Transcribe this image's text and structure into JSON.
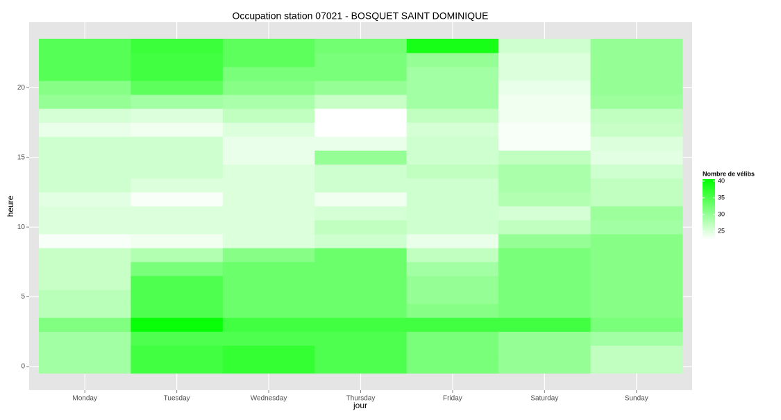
{
  "chart_data": {
    "type": "heatmap",
    "title": "Occupation station 07021 - BOSQUET SAINT DOMINIQUE",
    "x_label": "jour",
    "y_label": "heure",
    "categories": [
      "Monday",
      "Tuesday",
      "Wednesday",
      "Thursday",
      "Friday",
      "Saturday",
      "Sunday"
    ],
    "y": [
      0,
      1,
      2,
      3,
      4,
      5,
      6,
      7,
      8,
      9,
      10,
      11,
      12,
      13,
      14,
      15,
      16,
      17,
      18,
      19,
      20,
      21,
      22,
      23
    ],
    "values": [
      [
        29,
        29,
        29,
        31.5,
        27.5,
        27.5,
        26.5,
        26.5,
        26.5,
        23,
        25,
        25,
        24.5,
        26,
        26,
        26,
        26,
        24,
        25.5,
        30,
        31,
        34.5,
        34.5,
        34.5
      ],
      [
        36,
        36,
        35,
        40,
        35,
        35,
        35,
        32,
        28,
        23.5,
        25,
        25,
        23,
        25,
        26,
        26,
        26,
        23.5,
        25,
        29,
        34,
        36,
        36,
        36.5
      ],
      [
        37,
        37,
        35,
        36,
        33,
        33,
        33,
        33,
        31,
        25,
        25,
        25,
        25,
        25,
        25,
        24,
        24,
        25,
        27,
        28.5,
        31,
        32,
        34,
        34
      ],
      [
        35,
        35,
        35,
        36,
        33,
        33,
        33,
        33,
        33,
        26,
        27,
        25.5,
        23.5,
        26,
        26,
        30,
        24,
        22.5,
        22.5,
        26.5,
        30,
        32,
        32,
        32.5
      ],
      [
        32,
        32,
        32,
        36,
        31,
        30,
        30,
        29,
        27,
        24,
        26,
        26,
        26,
        26,
        27,
        26,
        26,
        25.5,
        27,
        29,
        29,
        29,
        30,
        39
      ],
      [
        30,
        30,
        30,
        36,
        32,
        32,
        32,
        32,
        32,
        30,
        27,
        25.5,
        28,
        28.5,
        28.5,
        27,
        23,
        23,
        23.5,
        23.5,
        24,
        25,
        25,
        26
      ],
      [
        27,
        27,
        29,
        32,
        31,
        31,
        31,
        31,
        31,
        31,
        29,
        29.5,
        27,
        27,
        26,
        24.5,
        25,
        26.5,
        27,
        29.5,
        30,
        30,
        30,
        30
      ]
    ],
    "ylim": [
      -1.7,
      24.7
    ],
    "yticks": [
      0,
      5,
      10,
      15,
      20
    ],
    "grid": true,
    "legend_title": "Nombre de vélibs",
    "legend_position": "right",
    "colorlim": [
      22.5,
      40.6
    ],
    "color_low": "#ffffff",
    "color_high": "#00ff00",
    "colorticks": [
      25,
      30,
      35,
      40
    ]
  }
}
